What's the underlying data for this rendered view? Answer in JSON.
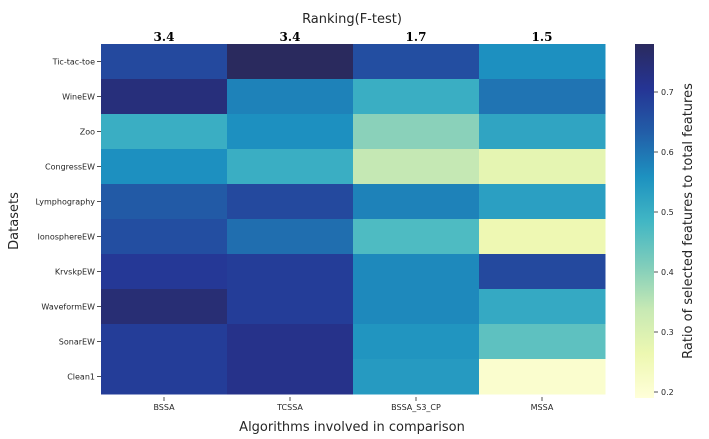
{
  "chart_data": {
    "type": "heatmap",
    "title": "Ranking(F-test)",
    "xlabel": "Algorithms involved in comparison",
    "ylabel": "Datasets",
    "colorbar_label": "Ratio of selected features to total features",
    "colorbar_range": [
      0.19,
      0.78
    ],
    "colorbar_ticks": [
      "0.2",
      "0.3",
      "0.4",
      "0.5",
      "0.6",
      "0.7"
    ],
    "colormap": [
      "#ffffd9",
      "#edf8b1",
      "#c7e9b4",
      "#7fcdbb",
      "#41b6c4",
      "#1d91c0",
      "#225ea8",
      "#253494",
      "#2a2a5e"
    ],
    "columns": [
      "BSSA",
      "TCSSA",
      "BSSA_S3_CP",
      "MSSA"
    ],
    "column_ranks": [
      "3.4",
      "3.4",
      "1.7",
      "1.5"
    ],
    "rows": [
      "Tic-tac-toe",
      "WineEW",
      "Zoo",
      "CongressEW",
      "Lymphography",
      "IonosphereEW",
      "KrvskpEW",
      "WaveformEW",
      "SonarEW",
      "Clean1"
    ],
    "values": [
      [
        0.67,
        0.78,
        0.66,
        0.56
      ],
      [
        0.74,
        0.58,
        0.5,
        0.6
      ],
      [
        0.5,
        0.56,
        0.4,
        0.52
      ],
      [
        0.56,
        0.5,
        0.34,
        0.28
      ],
      [
        0.64,
        0.67,
        0.58,
        0.53
      ],
      [
        0.66,
        0.61,
        0.47,
        0.26
      ],
      [
        0.7,
        0.69,
        0.57,
        0.67
      ],
      [
        0.75,
        0.69,
        0.57,
        0.51
      ],
      [
        0.69,
        0.72,
        0.55,
        0.45
      ],
      [
        0.69,
        0.72,
        0.54,
        0.21
      ]
    ]
  }
}
